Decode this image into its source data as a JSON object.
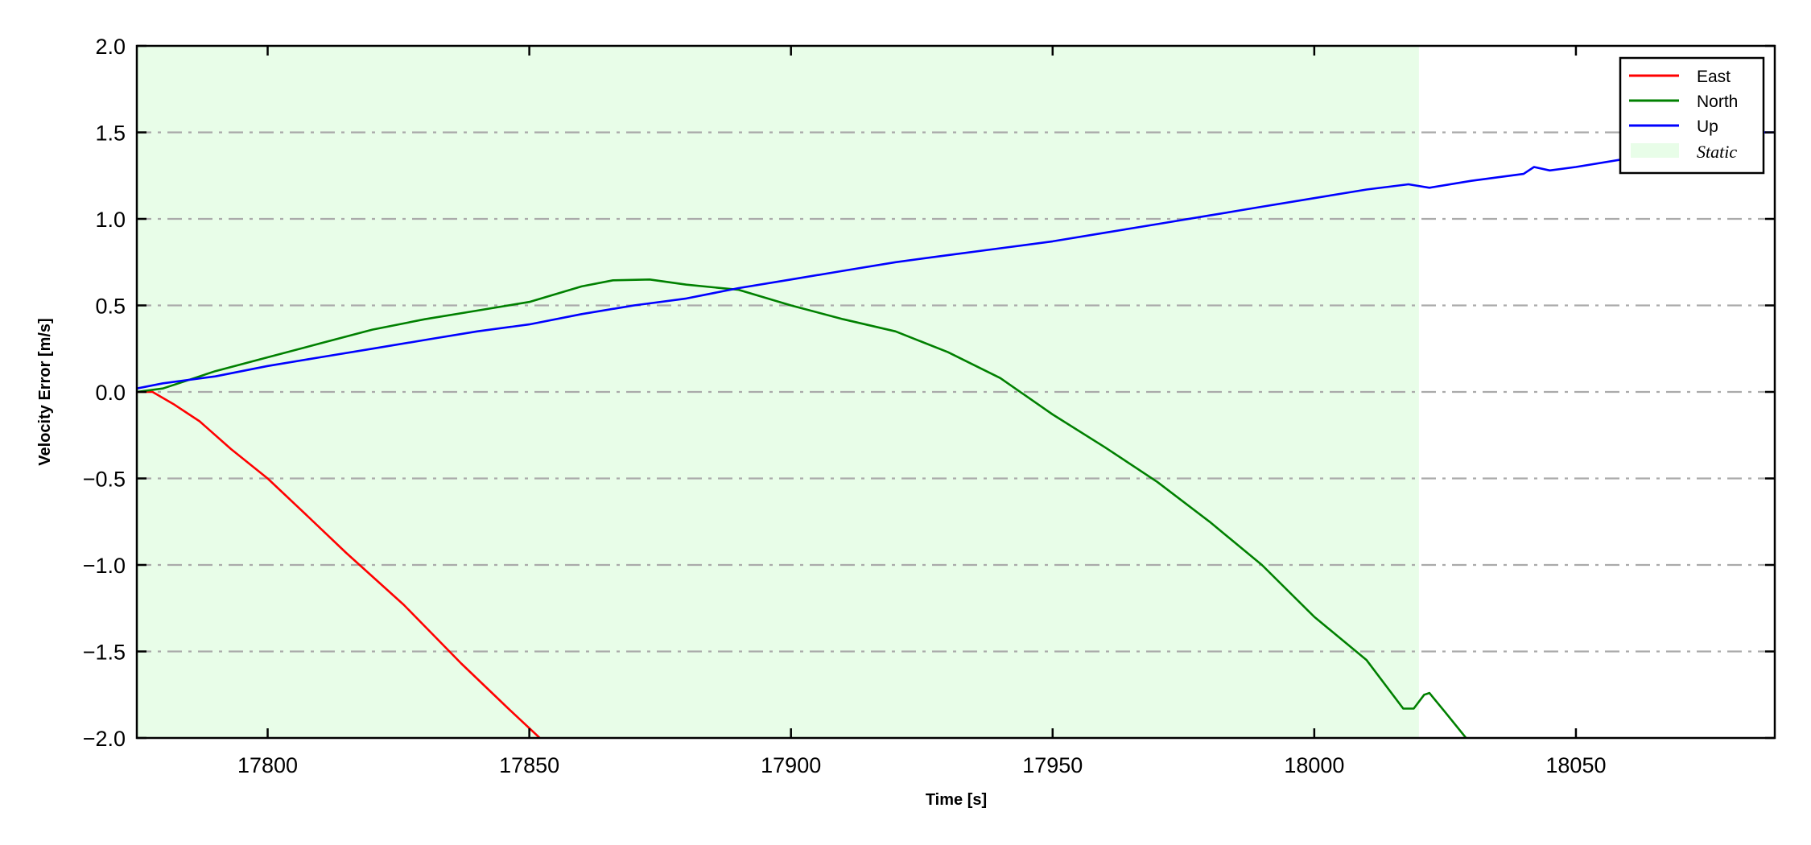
{
  "chart_data": {
    "type": "line",
    "title": "",
    "xlabel": "Time [s]",
    "ylabel": "Velocity Error [m/s]",
    "xlim": [
      17775,
      18088
    ],
    "ylim": [
      -2.0,
      2.0
    ],
    "xticks": [
      17800,
      17850,
      17900,
      17950,
      18000,
      18050
    ],
    "xtick_labels": [
      "17800",
      "17850",
      "17900",
      "17950",
      "18000",
      "18050"
    ],
    "yticks": [
      -2.0,
      -1.5,
      -1.0,
      -0.5,
      0.0,
      0.5,
      1.0,
      1.5,
      2.0
    ],
    "ytick_labels": [
      "−2.0",
      "−1.5",
      "−1.0",
      "−0.5",
      "0.0",
      "0.5",
      "1.0",
      "1.5",
      "2.0"
    ],
    "grid": {
      "axis": "y",
      "style": "dash-dot",
      "color": "#aaaaaa"
    },
    "legend_position": "top-right",
    "shaded_region": {
      "name": "Static",
      "x": [
        17775,
        18020
      ],
      "color": "#e8fde8"
    },
    "series": [
      {
        "name": "East",
        "color": "#ff0000",
        "x": [
          17775,
          17778,
          17782,
          17787,
          17793,
          17800,
          17807,
          17815,
          17826,
          17837,
          17846,
          17852
        ],
        "y": [
          0.0,
          0.0,
          -0.07,
          -0.17,
          -0.33,
          -0.5,
          -0.7,
          -0.93,
          -1.23,
          -1.57,
          -1.83,
          -2.0
        ]
      },
      {
        "name": "North",
        "color": "#008000",
        "x": [
          17775,
          17780,
          17790,
          17800,
          17810,
          17820,
          17830,
          17840,
          17850,
          17860,
          17866,
          17873,
          17880,
          17890,
          17900,
          17910,
          17920,
          17930,
          17940,
          17950,
          17960,
          17970,
          17980,
          17990,
          18000,
          18010,
          18017,
          18019,
          18021,
          18022,
          18025,
          18029
        ],
        "y": [
          0.0,
          0.02,
          0.12,
          0.2,
          0.28,
          0.36,
          0.42,
          0.47,
          0.52,
          0.61,
          0.645,
          0.65,
          0.62,
          0.59,
          0.5,
          0.42,
          0.35,
          0.23,
          0.08,
          -0.13,
          -0.32,
          -0.52,
          -0.75,
          -1.0,
          -1.3,
          -1.55,
          -1.83,
          -1.83,
          -1.75,
          -1.74,
          -1.85,
          -2.0
        ]
      },
      {
        "name": "Up",
        "color": "#0000ff",
        "x": [
          17775,
          17780,
          17790,
          17800,
          17810,
          17820,
          17830,
          17840,
          17850,
          17860,
          17870,
          17880,
          17890,
          17900,
          17910,
          17920,
          17930,
          17940,
          17950,
          17960,
          17970,
          17980,
          17990,
          18000,
          18010,
          18018,
          18022,
          18030,
          18040,
          18042,
          18045,
          18050,
          18060,
          18070,
          18080,
          18088
        ],
        "y": [
          0.02,
          0.05,
          0.09,
          0.15,
          0.2,
          0.25,
          0.3,
          0.35,
          0.39,
          0.45,
          0.5,
          0.54,
          0.6,
          0.65,
          0.7,
          0.75,
          0.79,
          0.83,
          0.87,
          0.92,
          0.97,
          1.02,
          1.07,
          1.12,
          1.17,
          1.2,
          1.18,
          1.22,
          1.26,
          1.3,
          1.28,
          1.3,
          1.35,
          1.42,
          1.5,
          1.5
        ]
      }
    ],
    "legend": [
      "East",
      "North",
      "Up",
      "Static"
    ]
  }
}
